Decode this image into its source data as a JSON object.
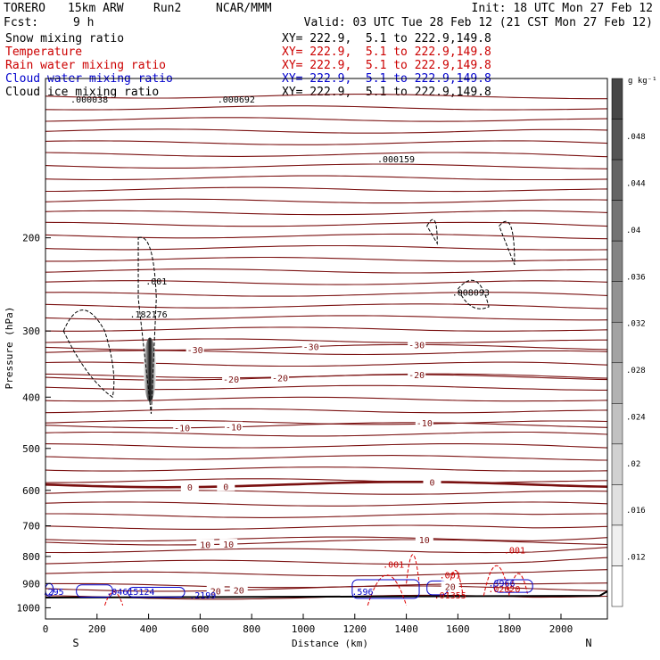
{
  "header": {
    "model": "TORERO",
    "resolution": "15km ARW",
    "run": "Run2",
    "center": "NCAR/MMM",
    "init": "Init: 18 UTC Mon 27 Feb 12",
    "fcst_label": "Fcst:",
    "fcst_value": "9 h",
    "valid": "Valid: 03 UTC Tue 28 Feb 12 (21 CST Mon 27 Feb 12)"
  },
  "fields": [
    {
      "name": "Snow mixing ratio",
      "color": "#000000",
      "xy": "XY= 222.9,  5.1 to 222.9,149.8"
    },
    {
      "name": "Temperature",
      "color": "#cc0000",
      "xy": "XY= 222.9,  5.1 to 222.9,149.8"
    },
    {
      "name": "Rain water mixing ratio",
      "color": "#cc0000",
      "xy": "XY= 222.9,  5.1 to 222.9,149.8"
    },
    {
      "name": "Cloud water mixing ratio",
      "color": "#0000cc",
      "xy": "XY= 222.9,  5.1 to 222.9,149.8"
    },
    {
      "name": "Cloud ice mixing ratio",
      "color": "#000000",
      "xy": "XY= 222.9,  5.1 to 222.9,149.8"
    }
  ],
  "colorbar": {
    "unit": "g kg⁻¹",
    "ticks": [
      ".048",
      ".044",
      ".04",
      ".036",
      ".032",
      ".028",
      ".024",
      ".02",
      ".016",
      ".012"
    ]
  },
  "chart_data": {
    "type": "cross-section",
    "xlabel": "Distance (km)",
    "ylabel": "Pressure (hPa)",
    "x_ticks": [
      0,
      200,
      400,
      600,
      800,
      1000,
      1200,
      1400,
      1600,
      1800,
      2000
    ],
    "y_ticks": [
      200,
      300,
      400,
      500,
      600,
      700,
      800,
      900,
      1000
    ],
    "xlim": [
      0,
      2180
    ],
    "ylim": [
      1050,
      100
    ],
    "y_scale": "log",
    "endpoints": {
      "left": "S",
      "right": "N"
    },
    "temperature_contours": [
      {
        "label": "-30",
        "p": 322,
        "labels_at_km": [
          580,
          1030,
          1440
        ]
      },
      {
        "label": "-20",
        "p": 367,
        "labels_at_km": [
          720,
          910,
          1440
        ]
      },
      {
        "label": "-10",
        "p": 452,
        "labels_at_km": [
          530,
          730,
          1470
        ]
      },
      {
        "label": "0",
        "p": 585,
        "labels_at_km": [
          560,
          700,
          1500
        ],
        "bold": true
      },
      {
        "label": "10",
        "p": 752,
        "labels_at_km": [
          620,
          710,
          1470
        ]
      },
      {
        "label": "20",
        "p": 920,
        "labels_at_km": [
          660,
          750,
          1570
        ]
      }
    ],
    "contour_labels": {
      "snow": [
        {
          "text": ".001",
          "x": 430,
          "p": 245
        },
        {
          "text": ".182176",
          "x": 400,
          "p": 283
        },
        {
          "text": ".000038",
          "x": 170,
          "p": 111
        },
        {
          "text": ".000692",
          "x": 740,
          "p": 111
        },
        {
          "text": ".000159",
          "x": 1360,
          "p": 144
        },
        {
          "text": ".008093",
          "x": 1650,
          "p": 257
        }
      ],
      "rain": [
        {
          "text": ".001",
          "x": 1350,
          "p": 840
        },
        {
          "text": ".001",
          "x": 1570,
          "p": 880
        },
        {
          "text": ".001",
          "x": 1820,
          "p": 790
        },
        {
          "text": ".01355",
          "x": 1570,
          "p": 960
        },
        {
          "text": ".02020",
          "x": 1780,
          "p": 935
        }
      ],
      "cloud_water": [
        {
          "text": ".295",
          "x": 30,
          "p": 945
        },
        {
          "text": ".04615124",
          "x": 330,
          "p": 945
        },
        {
          "text": ".2199",
          "x": 610,
          "p": 960
        },
        {
          "text": ".596",
          "x": 1230,
          "p": 945
        },
        {
          "text": ".3966",
          "x": 1770,
          "p": 912
        }
      ]
    }
  }
}
